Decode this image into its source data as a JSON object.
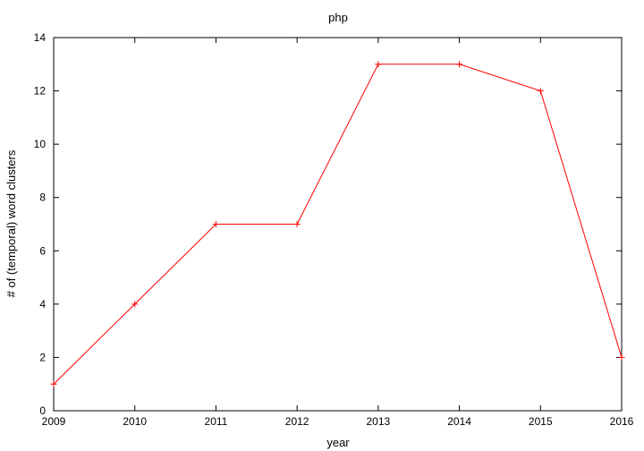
{
  "chart_data": {
    "type": "line",
    "title": "php",
    "xlabel": "year",
    "ylabel": "# of (temporal) word clusters",
    "x": [
      2009,
      2010,
      2011,
      2012,
      2013,
      2014,
      2015,
      2016
    ],
    "series": [
      {
        "name": "php",
        "values": [
          1,
          4,
          7,
          7,
          13,
          13,
          12,
          2
        ],
        "color": "#ff0000"
      }
    ],
    "xlim": [
      2009,
      2016
    ],
    "ylim": [
      0,
      14
    ],
    "xticks": [
      2009,
      2010,
      2011,
      2012,
      2013,
      2014,
      2015,
      2016
    ],
    "yticks": [
      0,
      2,
      4,
      6,
      8,
      10,
      12,
      14
    ],
    "grid": false,
    "legend": "none"
  }
}
